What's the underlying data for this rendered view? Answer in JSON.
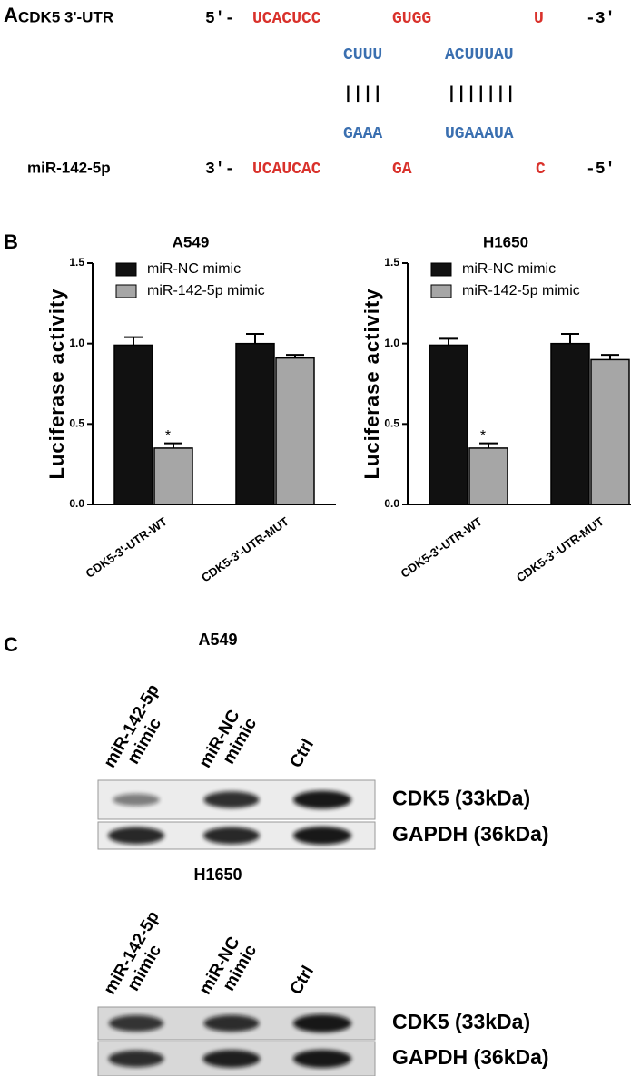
{
  "panel_labels": [
    "A",
    "B",
    "C"
  ],
  "sequence": {
    "utr_label": "CDK5 3'-UTR",
    "utr_5": "5′-",
    "utr_segments": [
      "UCACUCC",
      "GUGG",
      "U"
    ],
    "utr_3": "-3′",
    "utr_paired": [
      "CUUU",
      "ACUUUAU"
    ],
    "pairing": [
      "||||",
      "|||||||"
    ],
    "mir_paired": [
      "GAAA",
      "UGAAAUA"
    ],
    "mir_label": "miR-142-5p",
    "mir_3": "3′-",
    "mir_segments": [
      "UCAUCAC",
      "GA",
      "C"
    ],
    "mir_5": "-5′"
  },
  "chart_data": [
    {
      "type": "bar",
      "title": "A549",
      "ylabel": "Luciferase activity",
      "categories": [
        "CDK5-3'-UTR-WT",
        "CDK5-3'-UTR-MUT"
      ],
      "series": [
        {
          "name": "miR-NC mimic",
          "color": "#111111",
          "values": [
            0.99,
            1.0
          ],
          "errors": [
            0.05,
            0.06
          ]
        },
        {
          "name": "miR-142-5p mimic",
          "color": "#a6a6a6",
          "values": [
            0.35,
            0.91
          ],
          "errors": [
            0.03,
            0.02
          ]
        }
      ],
      "annotation": "*",
      "ylim": [
        0,
        1.5
      ],
      "yticks": [
        {
          "value": 0,
          "label": "0.0"
        },
        0.5,
        {
          "value": 1,
          "label": "1.0"
        },
        1.5
      ],
      "legend": "upper left"
    },
    {
      "type": "bar",
      "title": "H1650",
      "ylabel": "Luciferase activity",
      "categories": [
        "CDK5-3'-UTR-WT",
        "CDK5-3'-UTR-MUT"
      ],
      "series": [
        {
          "name": "miR-NC mimic",
          "color": "#111111",
          "values": [
            0.99,
            1.0
          ],
          "errors": [
            0.04,
            0.06
          ]
        },
        {
          "name": "miR-142-5p mimic",
          "color": "#a6a6a6",
          "values": [
            0.35,
            0.9
          ],
          "errors": [
            0.03,
            0.03
          ]
        }
      ],
      "annotation": "*",
      "ylim": [
        0,
        1.5
      ],
      "yticks": [
        {
          "value": 0,
          "label": "0.0"
        },
        0.5,
        {
          "value": 1,
          "label": "1.0"
        },
        1.5
      ],
      "legend": "upper left"
    }
  ],
  "blots": [
    {
      "title": "A549",
      "lanes": [
        [
          "miR-142-5p",
          "mimic"
        ],
        [
          "miR-NC",
          "mimic"
        ],
        [
          "Ctrl"
        ]
      ],
      "rows": [
        "CDK5 (33kDa)",
        "GAPDH (36kDa)"
      ]
    },
    {
      "title": "H1650",
      "lanes": [
        [
          "miR-142-5p",
          "mimic"
        ],
        [
          "miR-NC",
          "mimic"
        ],
        [
          "Ctrl"
        ]
      ],
      "rows": [
        "CDK5 (33kDa)",
        "GAPDH (36kDa)"
      ]
    }
  ]
}
